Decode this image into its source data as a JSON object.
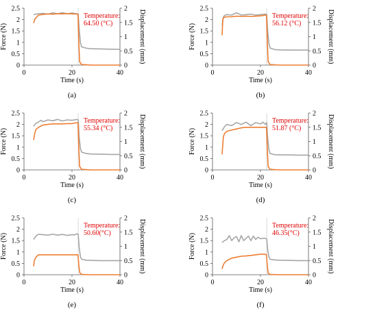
{
  "chart_data": [
    {
      "panel": "(a)",
      "type": "line",
      "xlabel": "Time (s)",
      "ylabel": "Force (N)",
      "y2label": "Displacement (mm)",
      "xlim": [
        0,
        40
      ],
      "ylim": [
        0,
        2.5
      ],
      "y2lim": [
        0,
        2
      ],
      "xticks": [
        "0",
        "20",
        "40"
      ],
      "yticks": [
        "0",
        "0.5",
        "1",
        "1.5",
        "2",
        "2.5"
      ],
      "y2ticks": [
        "0",
        "0.5",
        "1",
        "1.5",
        "2"
      ],
      "annotation": [
        "Temperature:",
        "64.50 (°C)"
      ],
      "series": [
        {
          "color": "#a6a6a6",
          "axis": "left",
          "x": [
            4,
            5,
            6,
            8,
            10,
            12,
            14,
            16,
            18,
            20,
            21,
            22,
            22.6,
            23,
            23.5,
            24,
            26,
            28,
            32,
            36,
            40
          ],
          "y": [
            2.22,
            2.24,
            2.26,
            2.27,
            2.24,
            2.3,
            2.26,
            2.3,
            2.26,
            2.29,
            2.27,
            2.26,
            2.24,
            1.6,
            1.0,
            0.8,
            0.74,
            0.72,
            0.71,
            0.7,
            0.69
          ]
        },
        {
          "color": "#ed7d31",
          "axis": "right",
          "x": [
            4,
            4.5,
            5,
            6,
            8,
            10,
            12,
            14,
            16,
            18,
            20,
            22,
            22.5,
            22.8,
            23.2,
            24,
            28,
            40
          ],
          "y": [
            1.48,
            1.62,
            1.66,
            1.76,
            1.78,
            1.8,
            1.79,
            1.81,
            1.8,
            1.81,
            1.8,
            1.8,
            1.78,
            0.9,
            0.12,
            0.02,
            0,
            0
          ]
        }
      ]
    },
    {
      "panel": "(b)",
      "type": "line",
      "xlabel": "Time (s)",
      "ylabel": "Force (N)",
      "y2label": "Displacement (mm)",
      "xlim": [
        0,
        40
      ],
      "ylim": [
        0,
        2.5
      ],
      "y2lim": [
        0,
        2
      ],
      "xticks": [
        "0",
        "20",
        "40"
      ],
      "yticks": [
        "0",
        "0.5",
        "1",
        "1.5",
        "2",
        "2.5"
      ],
      "y2ticks": [
        "0",
        "0.5",
        "1",
        "1.5",
        "2"
      ],
      "annotation": [
        "Temperature:",
        "56.12 (°C)"
      ],
      "series": [
        {
          "color": "#a6a6a6",
          "axis": "left",
          "x": [
            4,
            4.5,
            5,
            6,
            8,
            10,
            12,
            14,
            16,
            18,
            20,
            22,
            22.6,
            23,
            23.5,
            24,
            26,
            28,
            32,
            36,
            40
          ],
          "y": [
            1.75,
            2.1,
            2.18,
            2.22,
            2.2,
            2.3,
            2.2,
            2.22,
            2.24,
            2.2,
            2.22,
            2.24,
            2.22,
            1.5,
            0.95,
            0.75,
            0.68,
            0.67,
            0.66,
            0.66,
            0.66
          ]
        },
        {
          "color": "#ed7d31",
          "axis": "right",
          "x": [
            4,
            4.3,
            4.8,
            6,
            8,
            10,
            12,
            14,
            16,
            18,
            20,
            22,
            22.5,
            22.8,
            23.2,
            24,
            28,
            40
          ],
          "y": [
            1.05,
            1.62,
            1.68,
            1.7,
            1.7,
            1.72,
            1.71,
            1.72,
            1.71,
            1.72,
            1.73,
            1.76,
            1.75,
            0.9,
            0.12,
            0.02,
            0,
            0
          ]
        }
      ]
    },
    {
      "panel": "(c)",
      "type": "line",
      "xlabel": "Time (s)",
      "ylabel": "Force (N)",
      "y2label": "Displacement (mm)",
      "xlim": [
        0,
        40
      ],
      "ylim": [
        0,
        2.5
      ],
      "y2lim": [
        0,
        2
      ],
      "xticks": [
        "0",
        "20",
        "40"
      ],
      "yticks": [
        "0",
        "0.5",
        "1",
        "1.5",
        "2",
        "2.5"
      ],
      "y2ticks": [
        "0",
        "0.5",
        "1",
        "1.5",
        "2"
      ],
      "annotation": [
        "Temperature:",
        "55.34 (°C)"
      ],
      "series": [
        {
          "color": "#a6a6a6",
          "axis": "left",
          "x": [
            4,
            5,
            6,
            7,
            8,
            10,
            12,
            14,
            16,
            18,
            20,
            22,
            22.6,
            23,
            23.5,
            24,
            26,
            28,
            32,
            36,
            40
          ],
          "y": [
            1.92,
            2.05,
            2.1,
            2.18,
            2.12,
            2.2,
            2.16,
            2.22,
            2.15,
            2.2,
            2.18,
            2.22,
            2.2,
            1.45,
            0.95,
            0.78,
            0.72,
            0.7,
            0.69,
            0.68,
            0.68
          ]
        },
        {
          "color": "#ed7d31",
          "axis": "right",
          "x": [
            4,
            4.5,
            5,
            6,
            8,
            10,
            12,
            14,
            16,
            18,
            20,
            22,
            22.5,
            22.8,
            23.2,
            24,
            28,
            40
          ],
          "y": [
            1.05,
            1.3,
            1.42,
            1.5,
            1.58,
            1.6,
            1.62,
            1.62,
            1.62,
            1.63,
            1.63,
            1.66,
            1.65,
            0.85,
            0.12,
            0.02,
            0,
            0
          ]
        }
      ]
    },
    {
      "panel": "(d)",
      "type": "line",
      "xlabel": "Time (s)",
      "ylabel": "Force (N)",
      "y2label": "Displacement (mm)",
      "xlim": [
        0,
        40
      ],
      "ylim": [
        0,
        2.5
      ],
      "y2lim": [
        0,
        2
      ],
      "xticks": [
        "0",
        "20",
        "40"
      ],
      "yticks": [
        "0",
        "0.5",
        "1",
        "1.5",
        "2",
        "2.5"
      ],
      "y2ticks": [
        "0",
        "0.5",
        "1",
        "1.5",
        "2"
      ],
      "annotation": [
        "Temperature:",
        "51.87 (°C)"
      ],
      "series": [
        {
          "color": "#a6a6a6",
          "axis": "left",
          "x": [
            4,
            5,
            6,
            8,
            10,
            12,
            14,
            16,
            18,
            20,
            21,
            22,
            22.6,
            23,
            23.5,
            24,
            26,
            28,
            32,
            36,
            40
          ],
          "y": [
            1.72,
            1.9,
            2.0,
            1.95,
            2.08,
            2.0,
            2.1,
            1.95,
            2.08,
            2.02,
            2.1,
            2.0,
            2.08,
            1.4,
            0.9,
            0.72,
            0.67,
            0.66,
            0.66,
            0.65,
            0.65
          ]
        },
        {
          "color": "#ed7d31",
          "axis": "right",
          "x": [
            4,
            4.5,
            5,
            6,
            8,
            10,
            12,
            14,
            16,
            18,
            20,
            22,
            22.5,
            22.8,
            23.2,
            24,
            28,
            40
          ],
          "y": [
            0.55,
            1.15,
            1.28,
            1.36,
            1.4,
            1.44,
            1.48,
            1.5,
            1.5,
            1.5,
            1.5,
            1.5,
            1.49,
            0.8,
            0.12,
            0.02,
            0,
            0
          ]
        }
      ]
    },
    {
      "panel": "(e)",
      "type": "line",
      "xlabel": "Time (s)",
      "ylabel": "Force (N)",
      "y2label": "Displacement (mm)",
      "xlim": [
        0,
        40
      ],
      "ylim": [
        0,
        2.5
      ],
      "y2lim": [
        0,
        2
      ],
      "xticks": [
        "0",
        "20",
        "40"
      ],
      "yticks": [
        "0",
        "0.5",
        "1",
        "1.5",
        "2",
        "2.5"
      ],
      "y2ticks": [
        "0",
        "0.5",
        "1",
        "1.5",
        "2"
      ],
      "annotation": [
        "Temperature:",
        "50.60(°C)"
      ],
      "series": [
        {
          "color": "#a6a6a6",
          "axis": "left",
          "x": [
            4,
            5,
            6,
            8,
            10,
            12,
            14,
            16,
            18,
            20,
            21,
            22,
            22.6,
            23,
            23.5,
            24,
            26,
            28,
            32,
            36,
            40
          ],
          "y": [
            1.55,
            1.7,
            1.78,
            1.76,
            1.74,
            1.78,
            1.74,
            1.77,
            1.73,
            1.76,
            1.75,
            1.8,
            1.78,
            1.2,
            0.8,
            0.68,
            0.64,
            0.63,
            0.62,
            0.62,
            0.62
          ]
        },
        {
          "color": "#ed7d31",
          "axis": "right",
          "x": [
            4,
            4.3,
            5,
            6,
            8,
            10,
            12,
            14,
            16,
            18,
            20,
            22,
            22.5,
            22.8,
            23.2,
            24,
            28,
            40
          ],
          "y": [
            0.3,
            0.5,
            0.62,
            0.7,
            0.7,
            0.7,
            0.7,
            0.7,
            0.7,
            0.7,
            0.7,
            0.7,
            0.7,
            0.4,
            0.08,
            0.01,
            0,
            0
          ]
        }
      ]
    },
    {
      "panel": "(f)",
      "type": "line",
      "xlabel": "Time (s)",
      "ylabel": "Force (N)",
      "y2label": "Displacement (mm)",
      "xlim": [
        0,
        40
      ],
      "ylim": [
        0,
        2.5
      ],
      "y2lim": [
        0,
        2
      ],
      "xticks": [
        "0",
        "20",
        "40"
      ],
      "yticks": [
        "0",
        "0.5",
        "1",
        "1.5",
        "2",
        "2.5"
      ],
      "y2ticks": [
        "0",
        "0.5",
        "1",
        "1.5",
        "2"
      ],
      "annotation": [
        "Temperature:",
        "46.35(°C)"
      ],
      "series": [
        {
          "color": "#a6a6a6",
          "axis": "left",
          "x": [
            4,
            5,
            6,
            7,
            8,
            9,
            10,
            11,
            12,
            13,
            14,
            15,
            16,
            17,
            18,
            19,
            20,
            21,
            22,
            22.6,
            23,
            23.5,
            24,
            26,
            28,
            32,
            36,
            40
          ],
          "y": [
            1.42,
            1.5,
            1.55,
            1.72,
            1.5,
            1.62,
            1.68,
            1.45,
            1.72,
            1.5,
            1.6,
            1.7,
            1.5,
            1.7,
            1.55,
            1.65,
            1.58,
            1.6,
            1.6,
            1.58,
            1.1,
            0.78,
            0.68,
            0.65,
            0.64,
            0.63,
            0.62,
            0.62
          ]
        },
        {
          "color": "#ed7d31",
          "axis": "right",
          "x": [
            4,
            4.5,
            5,
            6,
            8,
            10,
            12,
            14,
            16,
            18,
            20,
            22,
            22.5,
            22.8,
            23.2,
            24,
            28,
            40
          ],
          "y": [
            0.2,
            0.35,
            0.42,
            0.5,
            0.58,
            0.62,
            0.65,
            0.66,
            0.68,
            0.7,
            0.72,
            0.72,
            0.7,
            0.35,
            0.06,
            0.01,
            0,
            0
          ]
        }
      ]
    }
  ]
}
